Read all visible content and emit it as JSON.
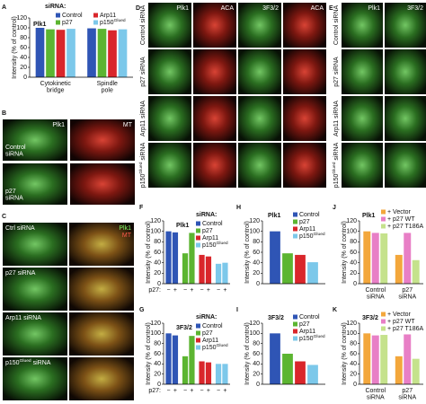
{
  "panels": {
    "B": {
      "letter": "B",
      "columns": [
        "Plk1",
        "MT"
      ],
      "rows": [
        [
          "Control",
          "siRNA"
        ],
        [
          "p27",
          "siRNA"
        ]
      ]
    },
    "C": {
      "letter": "C",
      "columns": [
        "Plk1",
        "MT"
      ],
      "rows": [
        "Ctrl siRNA",
        "p27 siRNA",
        "Arp11 siRNA",
        {
          "text": "p150",
          "sup": "Glued",
          "tail": " siRNA"
        }
      ]
    },
    "D": {
      "letter": "D",
      "columns": [
        "Plk1",
        "ACA",
        "3F3/2",
        "ACA"
      ],
      "rows": [
        "Control siRNA",
        "p27 siRNA",
        "Arp11 siRNA",
        {
          "text": "p150",
          "sup": "Glued",
          "tail": " siRNA"
        }
      ]
    },
    "E": {
      "letter": "E",
      "columns": [
        "Plk1",
        "3F3/2"
      ],
      "rows": [
        "Control siRNA",
        "p27 siRNA",
        "Arp11 siRNA",
        {
          "text": "p150",
          "sup": "Glued",
          "tail": " siRNA"
        }
      ]
    }
  },
  "chart_data": [
    {
      "type": "bar",
      "panel": "A",
      "title": "Plk1",
      "legend_title": "siRNA:",
      "ylabel": "Intensity (% of control)",
      "categories": [
        [
          "Cytokinetic",
          "bridge"
        ],
        [
          "Spindle",
          "pole"
        ]
      ],
      "series": [
        {
          "name": "Control",
          "color": "#2f55b5",
          "values": [
            100,
            99
          ]
        },
        {
          "name": "p27",
          "color": "#5cb531",
          "values": [
            97,
            98
          ]
        },
        {
          "name": "Arp11",
          "color": "#d9262b",
          "values": [
            96,
            95
          ]
        },
        {
          "name": {
            "text": "p150",
            "sup": "Glued"
          },
          "color": "#7cc8ea",
          "values": [
            98,
            97
          ]
        }
      ],
      "ylim": [
        0,
        120
      ],
      "yticks": [
        0,
        20,
        40,
        60,
        80,
        100,
        120
      ]
    },
    {
      "type": "bar",
      "panel": "F",
      "title": "Plk1",
      "legend_title": "siRNA:",
      "ylabel": "Intensity (% of control)",
      "xlabel": "p27:",
      "group_by": "series",
      "categories": [
        "−",
        "+"
      ],
      "series": [
        {
          "name": "Control",
          "color": "#2f55b5",
          "values": [
            100,
            98
          ]
        },
        {
          "name": "p27",
          "color": "#5cb531",
          "values": [
            58,
            97
          ]
        },
        {
          "name": "Arp11",
          "color": "#d9262b",
          "values": [
            55,
            52
          ]
        },
        {
          "name": {
            "text": "p150",
            "sup": "Glued"
          },
          "color": "#7cc8ea",
          "values": [
            38,
            40
          ]
        }
      ],
      "ylim": [
        0,
        120
      ],
      "yticks": [
        0,
        20,
        40,
        60,
        80,
        100,
        120
      ]
    },
    {
      "type": "bar",
      "panel": "G",
      "title": "3F3/2",
      "legend_title": "siRNA:",
      "ylabel": "Intensity (% of control)",
      "xlabel": "p27:",
      "group_by": "series",
      "categories": [
        "−",
        "+"
      ],
      "series": [
        {
          "name": "Control",
          "color": "#2f55b5",
          "values": [
            100,
            96
          ]
        },
        {
          "name": "p27",
          "color": "#5cb531",
          "values": [
            55,
            95
          ]
        },
        {
          "name": "Arp11",
          "color": "#d9262b",
          "values": [
            45,
            43
          ]
        },
        {
          "name": {
            "text": "p150",
            "sup": "Glued"
          },
          "color": "#7cc8ea",
          "values": [
            40,
            40
          ]
        }
      ],
      "ylim": [
        0,
        120
      ],
      "yticks": [
        0,
        20,
        40,
        60,
        80,
        100,
        120
      ]
    },
    {
      "type": "bar",
      "panel": "H",
      "title": "Plk1",
      "ylabel": "Intensity (% of control)",
      "categories": [
        null
      ],
      "series": [
        {
          "name": "Control",
          "color": "#2f55b5",
          "values": [
            100
          ]
        },
        {
          "name": "p27",
          "color": "#5cb531",
          "values": [
            58
          ]
        },
        {
          "name": "Arp11",
          "color": "#d9262b",
          "values": [
            55
          ]
        },
        {
          "name": {
            "text": "p150",
            "sup": "Glued"
          },
          "color": "#7cc8ea",
          "values": [
            41
          ]
        }
      ],
      "ylim": [
        0,
        120
      ],
      "yticks": [
        0,
        20,
        40,
        60,
        80,
        100,
        120
      ]
    },
    {
      "type": "bar",
      "panel": "I",
      "title": "3F3/2",
      "ylabel": "Intensity (% of control)",
      "categories": [
        null
      ],
      "series": [
        {
          "name": "Control",
          "color": "#2f55b5",
          "values": [
            100
          ]
        },
        {
          "name": "p27",
          "color": "#5cb531",
          "values": [
            60
          ]
        },
        {
          "name": "Arp11",
          "color": "#d9262b",
          "values": [
            45
          ]
        },
        {
          "name": {
            "text": "p150",
            "sup": "Glued"
          },
          "color": "#7cc8ea",
          "values": [
            38
          ]
        }
      ],
      "ylim": [
        0,
        120
      ],
      "yticks": [
        0,
        20,
        40,
        60,
        80,
        100,
        120
      ]
    },
    {
      "type": "bar",
      "panel": "J",
      "title": "Plk1",
      "ylabel": "Intensity (% of control)",
      "categories": [
        [
          "Control",
          "siRNA"
        ],
        [
          "p27",
          "siRNA"
        ]
      ],
      "series": [
        {
          "name": "+ Vector",
          "color": "#f3a73c",
          "values": [
            100,
            55
          ]
        },
        {
          "name": "+ p27 WT",
          "color": "#e87fc6",
          "values": [
            97,
            97
          ]
        },
        {
          "name": "+ p27 T186A",
          "color": "#c5e28c",
          "values": [
            96,
            45
          ]
        }
      ],
      "ylim": [
        0,
        120
      ],
      "yticks": [
        0,
        20,
        40,
        60,
        80,
        100,
        120
      ]
    },
    {
      "type": "bar",
      "panel": "K",
      "title": "3F3/2",
      "ylabel": "Intensity (% of control)",
      "categories": [
        [
          "Control",
          "siRNA"
        ],
        [
          "p27",
          "siRNA"
        ]
      ],
      "series": [
        {
          "name": "+ Vector",
          "color": "#f3a73c",
          "values": [
            100,
            55
          ]
        },
        {
          "name": "+ p27 WT",
          "color": "#e87fc6",
          "values": [
            96,
            98
          ]
        },
        {
          "name": "+ p27 T186A",
          "color": "#c5e28c",
          "values": [
            97,
            50
          ]
        }
      ],
      "ylim": [
        0,
        120
      ],
      "yticks": [
        0,
        20,
        40,
        60,
        80,
        100,
        120
      ]
    }
  ]
}
